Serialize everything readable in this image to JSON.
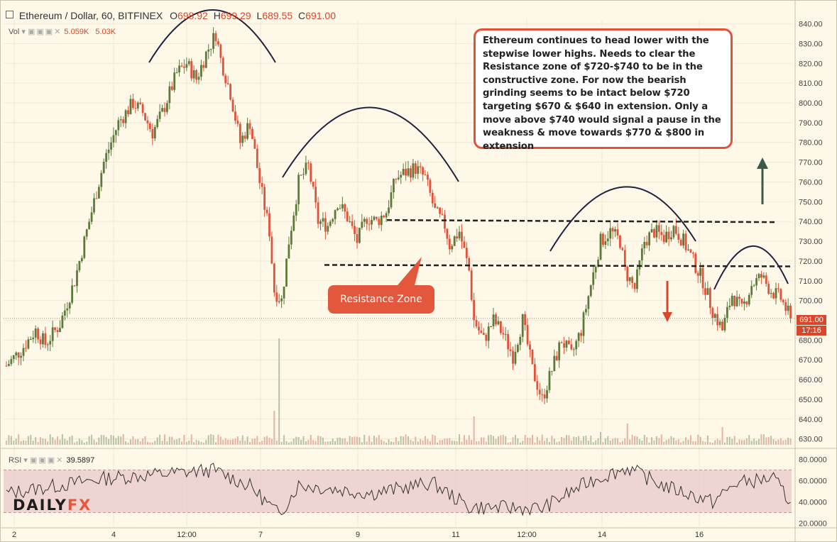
{
  "header": {
    "symbol": "Ethereum / Dollar, 60, BITFINEX",
    "open_label": "O",
    "open": "698.92",
    "high_label": "H",
    "high": "699.29",
    "low_label": "L",
    "low": "689.55",
    "close_label": "C",
    "close": "691.00",
    "vol_label": "Vol",
    "vol_1": "5.059K",
    "vol_2": "5.03K",
    "rsi_label": "RSI",
    "rsi_value": "39.5897"
  },
  "price_tag": {
    "price": "691.00",
    "countdown": "17:16",
    "color": "#d9472b"
  },
  "annotation": "Ethereum continues to head lower with the stepwise lower highs. Needs to clear the Resistance zone of $720-$740 to be in the constructive zone. For now the bearish grinding seems to be intact below $720 targeting $670 & $640 in extension. Only a move above $740 would signal a pause in the weakness & move towards $770 & $800 in extension",
  "callout": "Resistance Zone",
  "logo": {
    "part1": "DAILY",
    "part2": "FX"
  },
  "colors": {
    "up": "#5d7a3a",
    "down": "#e0533a",
    "background": "#fdf8e8",
    "rsi_band": "#eacaca"
  },
  "chart_data": [
    {
      "type": "candlestick",
      "y_axis": {
        "ticks": [
          "840.00",
          "830.00",
          "820.00",
          "810.00",
          "800.00",
          "790.00",
          "780.00",
          "770.00",
          "760.00",
          "750.00",
          "740.00",
          "730.00",
          "720.00",
          "710.00",
          "700.00",
          "690.00",
          "680.00",
          "670.00",
          "660.00",
          "650.00",
          "640.00",
          "630.00"
        ],
        "range": [
          627,
          842
        ]
      },
      "x_axis": {
        "ticks": [
          "2",
          "4",
          "12:00",
          "7",
          "9",
          "11",
          "12:00",
          "14",
          "16"
        ]
      },
      "resistance_lines": [
        740,
        718
      ],
      "waypoints": [
        [
          0,
          667
        ],
        [
          6,
          675
        ],
        [
          12,
          685
        ],
        [
          16,
          678
        ],
        [
          22,
          688
        ],
        [
          28,
          710
        ],
        [
          34,
          740
        ],
        [
          40,
          770
        ],
        [
          46,
          790
        ],
        [
          52,
          800
        ],
        [
          56,
          795
        ],
        [
          60,
          785
        ],
        [
          64,
          795
        ],
        [
          70,
          815
        ],
        [
          74,
          820
        ],
        [
          78,
          812
        ],
        [
          82,
          825
        ],
        [
          86,
          835
        ],
        [
          88,
          822
        ],
        [
          92,
          805
        ],
        [
          96,
          780
        ],
        [
          100,
          790
        ],
        [
          104,
          760
        ],
        [
          108,
          735
        ],
        [
          110,
          705
        ],
        [
          113,
          700
        ],
        [
          116,
          730
        ],
        [
          120,
          760
        ],
        [
          124,
          768
        ],
        [
          128,
          740
        ],
        [
          132,
          738
        ],
        [
          136,
          750
        ],
        [
          140,
          742
        ],
        [
          144,
          730
        ],
        [
          148,
          742
        ],
        [
          152,
          740
        ],
        [
          156,
          745
        ],
        [
          160,
          762
        ],
        [
          164,
          765
        ],
        [
          168,
          767
        ],
        [
          172,
          762
        ],
        [
          176,
          745
        ],
        [
          180,
          738
        ],
        [
          182,
          728
        ],
        [
          186,
          735
        ],
        [
          190,
          715
        ],
        [
          192,
          690
        ],
        [
          196,
          680
        ],
        [
          200,
          690
        ],
        [
          204,
          683
        ],
        [
          208,
          672
        ],
        [
          212,
          690
        ],
        [
          216,
          665
        ],
        [
          220,
          650
        ],
        [
          224,
          665
        ],
        [
          228,
          680
        ],
        [
          232,
          672
        ],
        [
          236,
          685
        ],
        [
          240,
          708
        ],
        [
          244,
          730
        ],
        [
          248,
          735
        ],
        [
          252,
          730
        ],
        [
          254,
          715
        ],
        [
          258,
          706
        ],
        [
          262,
          730
        ],
        [
          266,
          735
        ],
        [
          270,
          732
        ],
        [
          274,
          737
        ],
        [
          278,
          730
        ],
        [
          282,
          720
        ],
        [
          286,
          710
        ],
        [
          290,
          695
        ],
        [
          294,
          685
        ],
        [
          298,
          703
        ],
        [
          302,
          695
        ],
        [
          306,
          708
        ],
        [
          310,
          712
        ],
        [
          314,
          705
        ],
        [
          318,
          701
        ],
        [
          322,
          691
        ]
      ],
      "volume_note": "volume histogram shown below price",
      "arrows": [
        {
          "direction": "up"
        },
        {
          "direction": "down"
        }
      ]
    },
    {
      "type": "line",
      "name": "RSI",
      "y_axis": {
        "ticks": [
          "80.0000",
          "60.0000",
          "40.0000",
          "20.0000"
        ],
        "range": [
          17,
          85
        ],
        "band": [
          30,
          70
        ]
      },
      "last": 39.5897
    }
  ]
}
